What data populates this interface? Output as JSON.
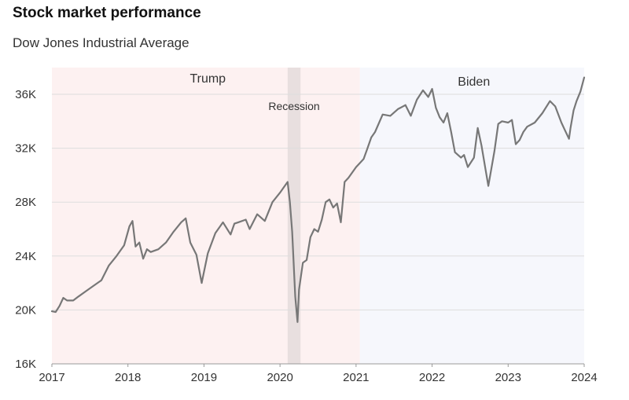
{
  "chart_data": {
    "type": "line",
    "title": "Stock market performance",
    "subtitle": "Dow Jones Industrial Average",
    "xlabel": "",
    "ylabel": "",
    "xlim": [
      2017.0,
      2024.0
    ],
    "ylim": [
      16000,
      37500
    ],
    "x_ticks": [
      {
        "value": 2017,
        "label": "2017"
      },
      {
        "value": 2018,
        "label": "2018"
      },
      {
        "value": 2019,
        "label": "2019"
      },
      {
        "value": 2020,
        "label": "2020"
      },
      {
        "value": 2021,
        "label": "2021"
      },
      {
        "value": 2022,
        "label": "2022"
      },
      {
        "value": 2023,
        "label": "2023"
      },
      {
        "value": 2024,
        "label": "2024"
      }
    ],
    "y_ticks": [
      {
        "value": 16000,
        "label": "16K"
      },
      {
        "value": 20000,
        "label": "20K"
      },
      {
        "value": 24000,
        "label": "24K"
      },
      {
        "value": 28000,
        "label": "28K"
      },
      {
        "value": 32000,
        "label": "32K"
      },
      {
        "value": 36000,
        "label": "36K"
      }
    ],
    "grid": true,
    "regions": [
      {
        "label": "Trump",
        "start": 2017.0,
        "end": 2021.05,
        "color": "#fdf1f1"
      },
      {
        "label": "Biden",
        "start": 2021.05,
        "end": 2024.0,
        "color": "#f6f7fc"
      }
    ],
    "annotations": [
      {
        "label": "Recession",
        "start": 2020.1,
        "end": 2020.27,
        "color": "#e8dfdf"
      }
    ],
    "series": [
      {
        "name": "",
        "color": "#777777",
        "x": [
          2017.0,
          2017.05,
          2017.1,
          2017.15,
          2017.2,
          2017.28,
          2017.35,
          2017.45,
          2017.55,
          2017.65,
          2017.75,
          2017.85,
          2017.95,
          2018.02,
          2018.06,
          2018.1,
          2018.15,
          2018.2,
          2018.25,
          2018.3,
          2018.4,
          2018.5,
          2018.6,
          2018.7,
          2018.76,
          2018.82,
          2018.9,
          2018.97,
          2019.05,
          2019.15,
          2019.25,
          2019.35,
          2019.4,
          2019.45,
          2019.55,
          2019.6,
          2019.7,
          2019.8,
          2019.9,
          2020.0,
          2020.05,
          2020.1,
          2020.13,
          2020.16,
          2020.2,
          2020.23,
          2020.25,
          2020.3,
          2020.35,
          2020.4,
          2020.45,
          2020.5,
          2020.55,
          2020.6,
          2020.65,
          2020.7,
          2020.75,
          2020.8,
          2020.85,
          2020.9,
          2020.95,
          2021.0,
          2021.05,
          2021.1,
          2021.15,
          2021.2,
          2021.25,
          2021.35,
          2021.45,
          2021.55,
          2021.65,
          2021.72,
          2021.8,
          2021.88,
          2021.95,
          2022.0,
          2022.05,
          2022.1,
          2022.15,
          2022.2,
          2022.25,
          2022.3,
          2022.38,
          2022.42,
          2022.47,
          2022.55,
          2022.6,
          2022.65,
          2022.7,
          2022.74,
          2022.78,
          2022.82,
          2022.87,
          2022.92,
          2023.0,
          2023.05,
          2023.1,
          2023.15,
          2023.2,
          2023.25,
          2023.35,
          2023.45,
          2023.55,
          2023.62,
          2023.7,
          2023.75,
          2023.8,
          2023.82,
          2023.86,
          2023.9,
          2023.95,
          2024.0
        ],
        "values": [
          19900,
          19850,
          20300,
          20900,
          20700,
          20700,
          21000,
          21400,
          21800,
          22200,
          23300,
          24000,
          24800,
          26200,
          26600,
          24700,
          25000,
          23800,
          24500,
          24300,
          24500,
          25000,
          25800,
          26500,
          26800,
          25000,
          24100,
          22000,
          24200,
          25700,
          26500,
          25600,
          26400,
          26500,
          26700,
          26000,
          27100,
          26600,
          28000,
          28700,
          29100,
          29500,
          28000,
          25800,
          21000,
          19100,
          21500,
          23500,
          23700,
          25400,
          26000,
          25800,
          26700,
          28000,
          28200,
          27600,
          27900,
          26500,
          29500,
          29800,
          30200,
          30600,
          30900,
          31200,
          32000,
          32800,
          33200,
          34500,
          34400,
          34900,
          35200,
          34400,
          35600,
          36300,
          35800,
          36400,
          35000,
          34300,
          33900,
          34600,
          33200,
          31700,
          31300,
          31500,
          30600,
          31300,
          33500,
          32200,
          30500,
          29200,
          30500,
          31800,
          33800,
          34000,
          33900,
          34100,
          32300,
          32600,
          33200,
          33600,
          33900,
          34600,
          35500,
          35100,
          33900,
          33300,
          32700,
          33500,
          34800,
          35500,
          36200,
          37250
        ]
      }
    ]
  }
}
